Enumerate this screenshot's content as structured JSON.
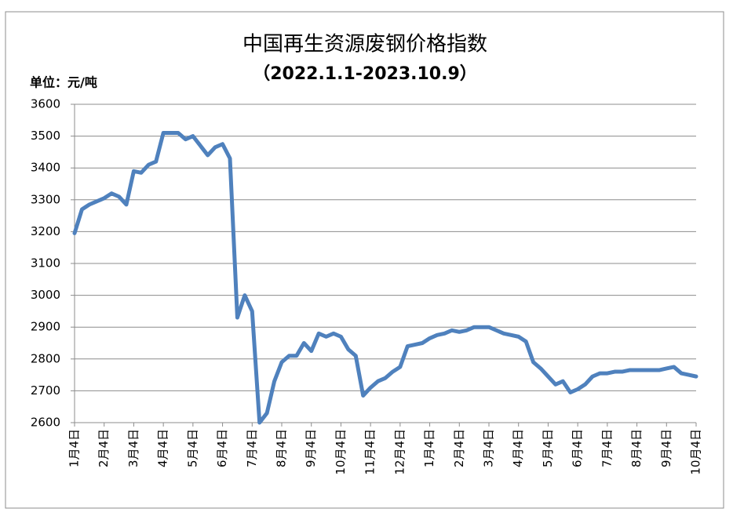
{
  "chart_data": {
    "type": "line",
    "title": "中国再生资源废钢价格指数",
    "subtitle": "（2022.1.1-2023.10.9）",
    "y_label": "单位：元/吨",
    "categories": [
      "1月4日",
      null,
      null,
      null,
      "2月4日",
      null,
      null,
      null,
      "3月4日",
      null,
      null,
      null,
      "4月4日",
      null,
      null,
      null,
      "5月4日",
      null,
      null,
      null,
      "6月4日",
      null,
      null,
      null,
      "7月4日",
      null,
      null,
      null,
      "8月4日",
      null,
      null,
      null,
      "9月4日",
      null,
      null,
      null,
      "10月4日",
      null,
      null,
      null,
      "11月4日",
      null,
      null,
      null,
      "12月4日",
      null,
      null,
      null,
      "1月4日",
      null,
      null,
      null,
      "2月4日",
      null,
      null,
      null,
      "3月4日",
      null,
      null,
      null,
      "4月4日",
      null,
      null,
      null,
      "5月4日",
      null,
      null,
      null,
      "6月4日",
      null,
      null,
      null,
      "7月4日",
      null,
      null,
      null,
      "8月4日",
      null,
      null,
      null,
      "9月4日",
      null,
      null,
      null,
      "10月4日"
    ],
    "values": [
      3195,
      3270,
      3285,
      3295,
      3305,
      3320,
      3310,
      3285,
      3390,
      3385,
      3410,
      3420,
      3510,
      3510,
      3510,
      3490,
      3500,
      3470,
      3440,
      3465,
      3475,
      3430,
      2930,
      3000,
      2950,
      2600,
      2630,
      2730,
      2790,
      2810,
      2810,
      2850,
      2825,
      2880,
      2870,
      2880,
      2870,
      2830,
      2810,
      2685,
      2710,
      2730,
      2740,
      2760,
      2775,
      2840,
      2845,
      2850,
      2865,
      2875,
      2880,
      2890,
      2885,
      2890,
      2900,
      2900,
      2900,
      2890,
      2880,
      2875,
      2870,
      2855,
      2790,
      2770,
      2745,
      2720,
      2730,
      2695,
      2705,
      2720,
      2745,
      2755,
      2755,
      2760,
      2760,
      2765,
      2765,
      2765,
      2765,
      2765,
      2770,
      2775,
      2755,
      2750,
      2745
    ],
    "color": "#4f81bd",
    "ylim": [
      2600,
      3600
    ],
    "yticks": [
      2600,
      2700,
      2800,
      2900,
      3000,
      3100,
      3200,
      3300,
      3400,
      3500,
      3600
    ],
    "grid": true
  }
}
